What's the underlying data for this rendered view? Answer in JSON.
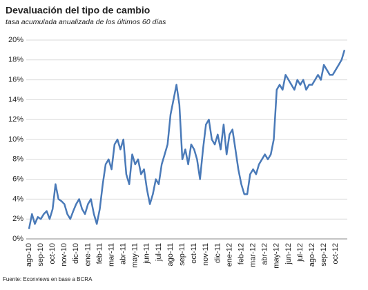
{
  "chart_data": {
    "type": "line",
    "title": "Devaluación del tipo de cambio",
    "subtitle": "tasa acumulada anualizada de los últimos 60 días",
    "source": "Fuente: Econviews en base a BCRA",
    "categories": [
      "ago-10",
      null,
      null,
      null,
      "sep-10",
      null,
      null,
      null,
      "oct-10",
      null,
      null,
      null,
      "nov-10",
      null,
      null,
      null,
      "dic-10",
      null,
      null,
      null,
      "ene-11",
      null,
      null,
      null,
      "feb-11",
      null,
      null,
      null,
      "mar-11",
      null,
      null,
      null,
      "abr-11",
      null,
      null,
      null,
      "may-11",
      null,
      null,
      null,
      "jun-11",
      null,
      null,
      null,
      "jul-11",
      null,
      null,
      null,
      "ago-11",
      null,
      null,
      null,
      "sep-11",
      null,
      null,
      null,
      "oct-11",
      null,
      null,
      null,
      "nov-11",
      null,
      null,
      null,
      "dic-11",
      null,
      null,
      null,
      "ene-12",
      null,
      null,
      null,
      "feb-12",
      null,
      null,
      null,
      "mar-12",
      null,
      null,
      null,
      "abr-12",
      null,
      null,
      null,
      "may-12",
      null,
      null,
      null,
      "jun-12",
      null,
      null,
      null,
      "jul-12",
      null,
      null,
      null,
      "ago-12",
      null,
      null,
      null,
      "sep-12",
      null,
      null,
      null,
      "oct-12",
      null,
      null,
      null
    ],
    "series": [
      {
        "name": "Devaluación",
        "color": "#4a7ab8",
        "values": [
          1.0,
          2.5,
          1.5,
          2.2,
          2.0,
          2.5,
          2.8,
          2.0,
          3.0,
          5.5,
          4.0,
          3.8,
          3.5,
          2.5,
          2.0,
          2.8,
          3.5,
          4.0,
          3.0,
          2.5,
          3.5,
          4.0,
          2.5,
          1.5,
          3.0,
          5.5,
          7.5,
          8.0,
          7.0,
          9.5,
          10.0,
          9.0,
          10.0,
          6.5,
          5.5,
          8.5,
          7.5,
          8.0,
          6.5,
          7.0,
          5.0,
          3.5,
          4.5,
          6.0,
          5.5,
          7.5,
          8.5,
          9.5,
          12.5,
          14.0,
          15.5,
          13.5,
          8.0,
          9.0,
          7.5,
          9.5,
          9.0,
          8.0,
          6.0,
          9.0,
          11.5,
          12.0,
          10.0,
          9.5,
          10.5,
          9.0,
          11.5,
          8.5,
          10.5,
          11.0,
          9.0,
          7.0,
          5.5,
          4.5,
          4.5,
          6.5,
          7.0,
          6.5,
          7.5,
          8.0,
          8.5,
          8.0,
          8.5,
          10.0,
          15.0,
          15.5,
          15.0,
          16.5,
          16.0,
          15.5,
          15.0,
          16.0,
          15.5,
          16.0,
          15.0,
          15.5,
          15.5,
          16.0,
          16.5,
          16.0,
          17.5,
          17.0,
          16.5,
          16.5,
          17.0,
          17.5,
          18.0,
          19.0
        ]
      }
    ],
    "ylim": [
      0,
      20
    ],
    "yticks": [
      {
        "value": 0,
        "label": "0%"
      },
      {
        "value": 2,
        "label": "2%"
      },
      {
        "value": 4,
        "label": "4%"
      },
      {
        "value": 6,
        "label": "6%"
      },
      {
        "value": 8,
        "label": "8%"
      },
      {
        "value": 10,
        "label": "10%"
      },
      {
        "value": 12,
        "label": "12%"
      },
      {
        "value": 14,
        "label": "14%"
      },
      {
        "value": 16,
        "label": "16%"
      },
      {
        "value": 18,
        "label": "18%"
      },
      {
        "value": 20,
        "label": "20%"
      }
    ],
    "grid": true
  }
}
